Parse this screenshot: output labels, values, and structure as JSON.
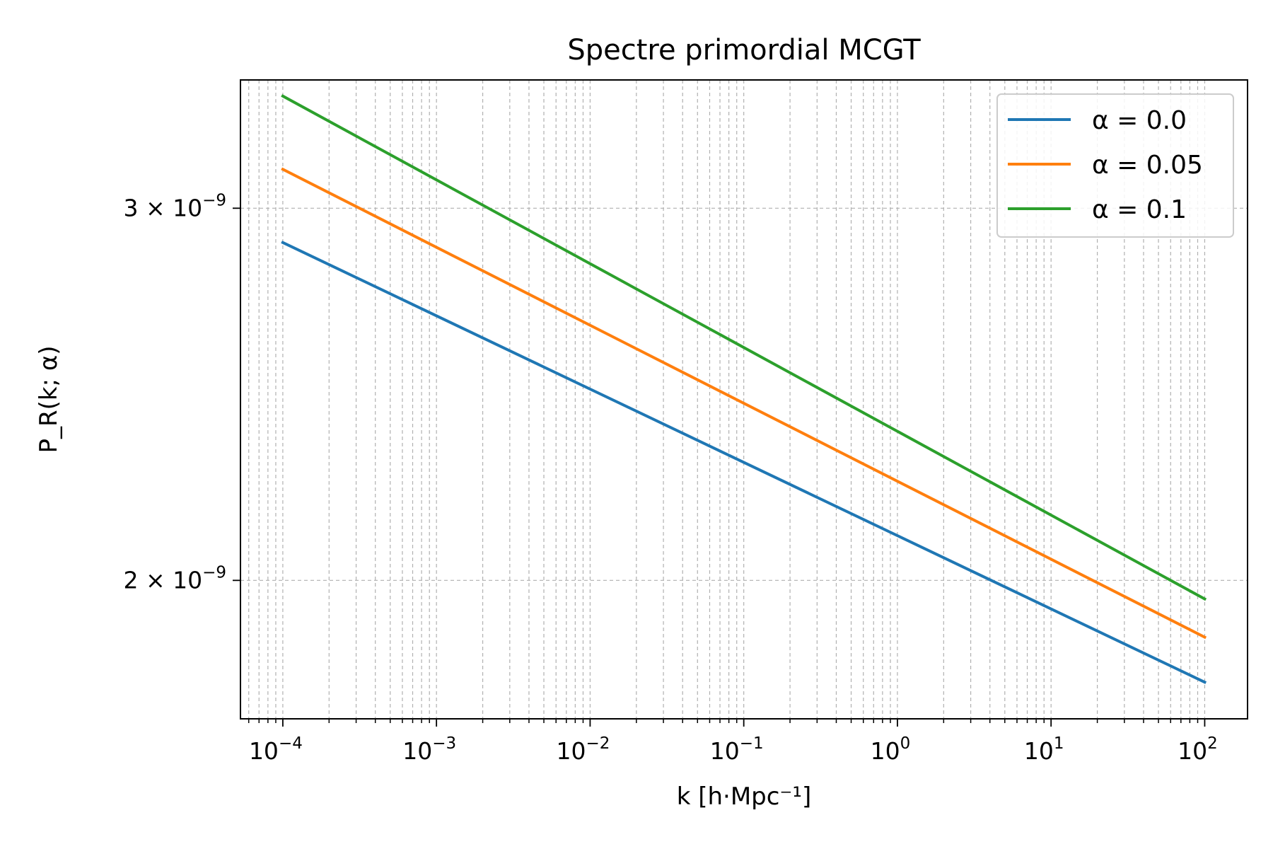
{
  "chart_data": {
    "type": "line",
    "title": "Spectre primordial MCGT",
    "xlabel": "k [h·Mpc⁻¹]",
    "ylabel": "P_R(k; α)",
    "xscale": "log",
    "yscale": "log",
    "xlim": [
      5.3e-05,
      190
    ],
    "ylim": [
      1.72e-09,
      3.45e-09
    ],
    "grid": true,
    "legend": "top-right",
    "x_ticks": [
      {
        "value": 0.0001,
        "base": "10",
        "exp": "−4"
      },
      {
        "value": 0.001,
        "base": "10",
        "exp": "−3"
      },
      {
        "value": 0.01,
        "base": "10",
        "exp": "−2"
      },
      {
        "value": 0.1,
        "base": "10",
        "exp": "−1"
      },
      {
        "value": 1,
        "base": "10",
        "exp": "0"
      },
      {
        "value": 10,
        "base": "10",
        "exp": "1"
      },
      {
        "value": 100,
        "base": "10",
        "exp": "2"
      }
    ],
    "y_ticks": [
      {
        "value": 2e-09,
        "mant": "2",
        "base": "× 10",
        "exp": "−9"
      },
      {
        "value": 3e-09,
        "mant": "3",
        "base": "× 10",
        "exp": "−9"
      }
    ],
    "x": [
      0.0001,
      100
    ],
    "series": [
      {
        "name": "α = 0.0",
        "color": "#1f77b4",
        "values": [
          2.89e-09,
          1.79e-09
        ]
      },
      {
        "name": "α = 0.05",
        "color": "#ff7f0e",
        "values": [
          3.13e-09,
          1.88e-09
        ]
      },
      {
        "name": "α = 0.1",
        "color": "#2ca02c",
        "values": [
          3.39e-09,
          1.96e-09
        ]
      }
    ]
  }
}
